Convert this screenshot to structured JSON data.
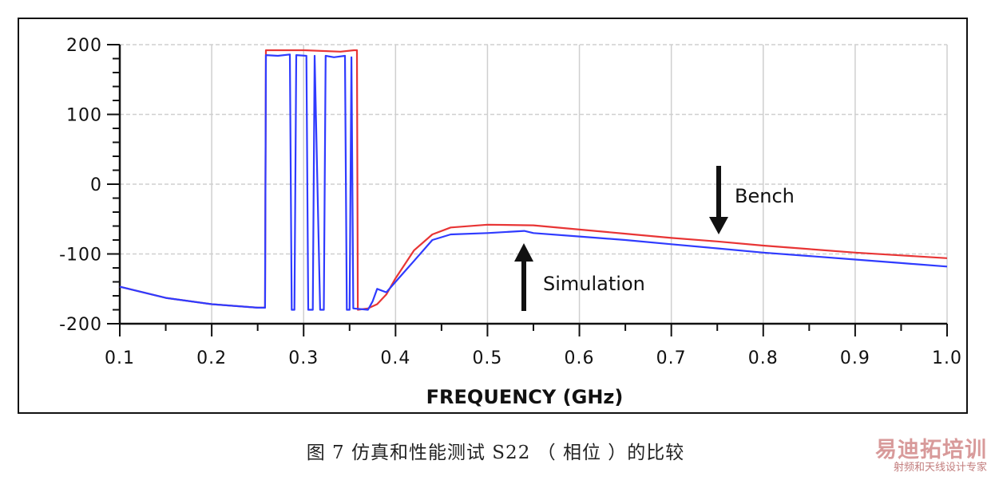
{
  "chart_data": {
    "type": "line",
    "title": "",
    "xlabel": "FREQUENCY (GHz)",
    "ylabel": "",
    "xlim": [
      0.1,
      1.0
    ],
    "ylim": [
      -200,
      200
    ],
    "xticks": [
      "0.1",
      "0.2",
      "0.3",
      "0.4",
      "0.5",
      "0.6",
      "0.7",
      "0.8",
      "0.9",
      "1.0"
    ],
    "yticks": [
      "200",
      "100",
      "0",
      "-100",
      "-200"
    ],
    "grid": true,
    "series": [
      {
        "name": "Bench",
        "color": "#e83535",
        "points": [
          [
            0.1,
            -147
          ],
          [
            0.15,
            -163
          ],
          [
            0.2,
            -172
          ],
          [
            0.25,
            -177
          ],
          [
            0.258,
            -177
          ],
          [
            0.259,
            192
          ],
          [
            0.3,
            192
          ],
          [
            0.34,
            190
          ],
          [
            0.355,
            192
          ],
          [
            0.358,
            192
          ],
          [
            0.359,
            -180
          ],
          [
            0.37,
            -178
          ],
          [
            0.38,
            -172
          ],
          [
            0.39,
            -158
          ],
          [
            0.4,
            -135
          ],
          [
            0.42,
            -95
          ],
          [
            0.44,
            -72
          ],
          [
            0.46,
            -62
          ],
          [
            0.5,
            -58
          ],
          [
            0.55,
            -59
          ],
          [
            0.6,
            -65
          ],
          [
            0.65,
            -71
          ],
          [
            0.7,
            -77
          ],
          [
            0.75,
            -82
          ],
          [
            0.8,
            -88
          ],
          [
            0.85,
            -93
          ],
          [
            0.9,
            -98
          ],
          [
            0.95,
            -102
          ],
          [
            1.0,
            -106
          ]
        ]
      },
      {
        "name": "Simulation",
        "color": "#2f3bff",
        "points": [
          [
            0.1,
            -147
          ],
          [
            0.15,
            -163
          ],
          [
            0.2,
            -172
          ],
          [
            0.25,
            -177
          ],
          [
            0.258,
            -177
          ],
          [
            0.259,
            185
          ],
          [
            0.272,
            184
          ],
          [
            0.285,
            186
          ],
          [
            0.287,
            -180
          ],
          [
            0.29,
            -180
          ],
          [
            0.292,
            185
          ],
          [
            0.303,
            184
          ],
          [
            0.305,
            -180
          ],
          [
            0.31,
            -180
          ],
          [
            0.312,
            184
          ],
          [
            0.318,
            -180
          ],
          [
            0.322,
            -180
          ],
          [
            0.324,
            184
          ],
          [
            0.333,
            182
          ],
          [
            0.345,
            184
          ],
          [
            0.347,
            -180
          ],
          [
            0.35,
            -180
          ],
          [
            0.352,
            182
          ],
          [
            0.354,
            -178
          ],
          [
            0.37,
            -180
          ],
          [
            0.375,
            -168
          ],
          [
            0.38,
            -150
          ],
          [
            0.39,
            -155
          ],
          [
            0.4,
            -140
          ],
          [
            0.42,
            -110
          ],
          [
            0.44,
            -80
          ],
          [
            0.46,
            -72
          ],
          [
            0.5,
            -70
          ],
          [
            0.54,
            -67
          ],
          [
            0.55,
            -70
          ],
          [
            0.6,
            -75
          ],
          [
            0.65,
            -80
          ],
          [
            0.7,
            -86
          ],
          [
            0.75,
            -92
          ],
          [
            0.8,
            -98
          ],
          [
            0.85,
            -103
          ],
          [
            0.9,
            -108
          ],
          [
            0.95,
            -113
          ],
          [
            1.0,
            -118
          ]
        ]
      }
    ],
    "annotations": {
      "bench": "Bench",
      "simulation": "Simulation"
    }
  },
  "caption": "图 7 仿真和性能测试 S22 （ 相位 ）的比较",
  "watermark": {
    "brand": "易迪拓培训",
    "sub": "射频和天线设计专家"
  }
}
